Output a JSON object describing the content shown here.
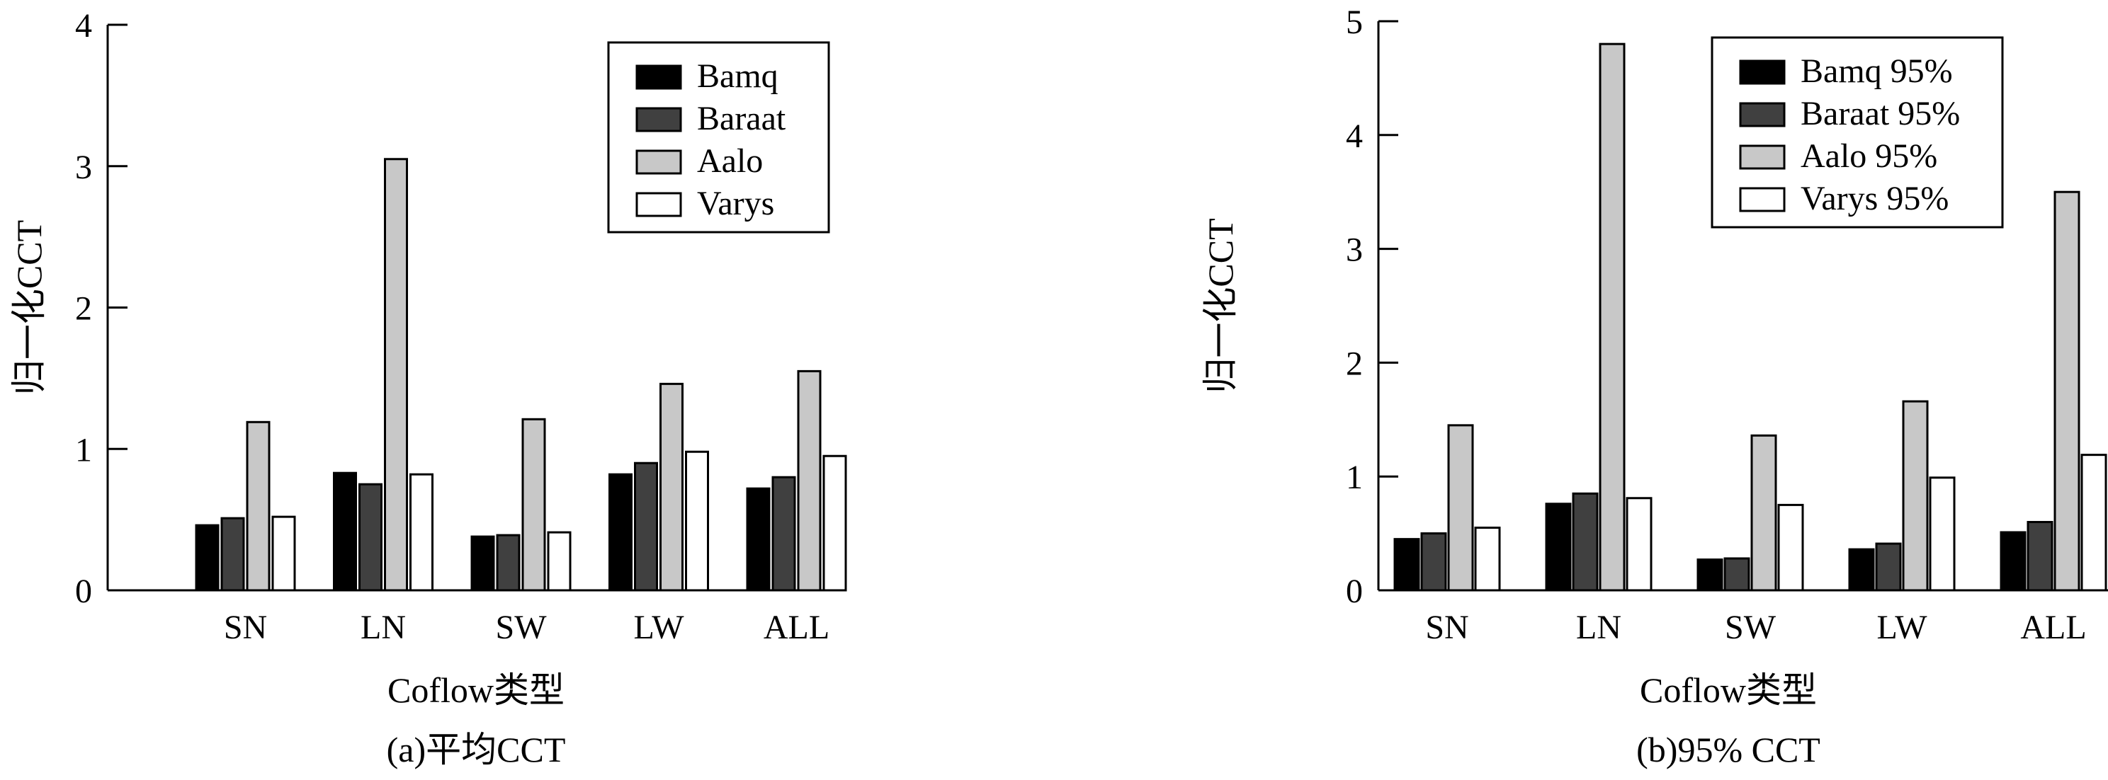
{
  "chart_data": [
    {
      "type": "bar",
      "caption": "(a)平均CCT",
      "xlabel": "Coflow类型",
      "ylabel": "归一化CCT",
      "categories": [
        "SN",
        "LN",
        "SW",
        "LW",
        "ALL"
      ],
      "ylim": [
        0,
        4
      ],
      "yticks": [
        0,
        1,
        2,
        3,
        4
      ],
      "legend_position": "top-right",
      "grid": false,
      "series": [
        {
          "name": "Bamq",
          "color": "#000000",
          "values": [
            0.46,
            0.83,
            0.38,
            0.82,
            0.72
          ]
        },
        {
          "name": "Baraat",
          "color": "#404040",
          "values": [
            0.51,
            0.75,
            0.39,
            0.9,
            0.8
          ]
        },
        {
          "name": "Aalo",
          "color": "#c8c8c8",
          "values": [
            1.19,
            3.05,
            1.21,
            1.46,
            1.55
          ]
        },
        {
          "name": "Varys",
          "color": "#ffffff",
          "values": [
            0.52,
            0.82,
            0.41,
            0.98,
            0.95
          ]
        }
      ]
    },
    {
      "type": "bar",
      "caption": "(b)95% CCT",
      "xlabel": "Coflow类型",
      "ylabel": "归一化CCT",
      "categories": [
        "SN",
        "LN",
        "SW",
        "LW",
        "ALL"
      ],
      "ylim": [
        0,
        5
      ],
      "yticks": [
        0,
        1,
        2,
        3,
        4,
        5
      ],
      "legend_position": "top-right",
      "grid": false,
      "series": [
        {
          "name": "Bamq 95%",
          "color": "#000000",
          "values": [
            0.45,
            0.76,
            0.27,
            0.36,
            0.51
          ]
        },
        {
          "name": "Baraat 95%",
          "color": "#404040",
          "values": [
            0.5,
            0.85,
            0.28,
            0.41,
            0.6
          ]
        },
        {
          "name": "Aalo 95%",
          "color": "#c8c8c8",
          "values": [
            1.45,
            4.8,
            1.36,
            1.66,
            3.5
          ]
        },
        {
          "name": "Varys 95%",
          "color": "#ffffff",
          "values": [
            0.55,
            0.81,
            0.75,
            0.99,
            1.19
          ]
        }
      ]
    }
  ]
}
